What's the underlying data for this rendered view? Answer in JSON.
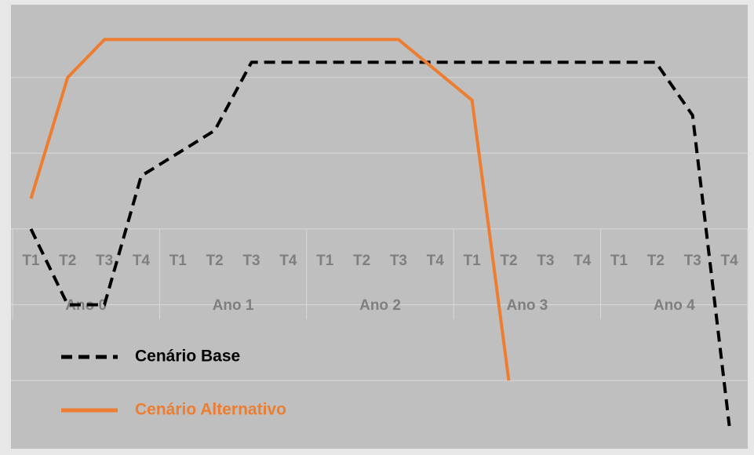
{
  "chart_data": {
    "type": "line",
    "categories": [
      "T1",
      "T2",
      "T3",
      "T4",
      "T1",
      "T2",
      "T3",
      "T4",
      "T1",
      "T2",
      "T3",
      "T4",
      "T1",
      "T2",
      "T3",
      "T4",
      "T1",
      "T2",
      "T3",
      "T4"
    ],
    "groups": [
      "Ano 0",
      "Ano 1",
      "Ano 2",
      "Ano 3",
      "Ano 4"
    ],
    "series": [
      {
        "name": "Cenário Base",
        "color": "#000000",
        "dashed": true,
        "values": [
          0,
          -1,
          -1,
          0.7,
          1.0,
          1.3,
          2.2,
          2.2,
          2.2,
          2.2,
          2.2,
          2.2,
          2.2,
          2.2,
          2.2,
          2.2,
          2.2,
          2.2,
          1.5,
          -2.6
        ]
      },
      {
        "name": "Cenário Alternativo",
        "color": "#ed7d31",
        "dashed": false,
        "values": [
          0.4,
          2.0,
          2.5,
          2.5,
          2.5,
          2.5,
          2.5,
          2.5,
          2.5,
          2.5,
          2.5,
          2.1,
          1.7,
          -2.0,
          null,
          null,
          null,
          null,
          null,
          null
        ]
      }
    ],
    "ylim": [
      -2.9,
      2.96
    ],
    "yticks": [
      -2,
      -1,
      0,
      1,
      2
    ],
    "grid": true
  }
}
